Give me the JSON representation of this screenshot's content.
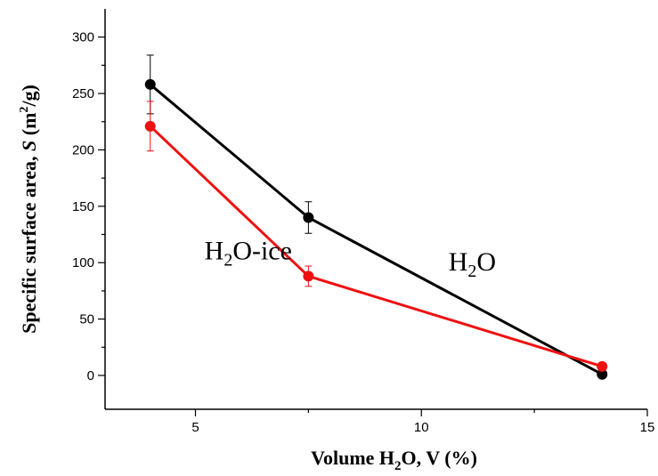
{
  "chart_data": {
    "type": "line",
    "title": "",
    "xlabel": {
      "pre": "Volume H",
      "sub": "2",
      "post": "O, V (%)"
    },
    "ylabel": {
      "pre": "Specific surface area, ",
      "italic": "S",
      "mid": " (m",
      "sup": "2",
      "post": "/g)"
    },
    "xlim": [
      3,
      15
    ],
    "ylim": [
      -30,
      325
    ],
    "xticks": [
      5,
      10,
      15
    ],
    "xticks_minor": [
      7.5,
      12.5
    ],
    "yticks": [
      0,
      50,
      100,
      150,
      200,
      250,
      300
    ],
    "yticks_minor": [
      25,
      75,
      125,
      175,
      225,
      275
    ],
    "grid": false,
    "series": [
      {
        "color": "#000000",
        "x": [
          4,
          7.5,
          14
        ],
        "y": [
          258,
          140,
          1
        ],
        "err": [
          26,
          14,
          0
        ]
      },
      {
        "color": "#ee1111",
        "x": [
          4,
          7.5,
          14
        ],
        "y": [
          221,
          88,
          8
        ],
        "err": [
          22,
          9,
          0
        ]
      }
    ],
    "annotations": [
      {
        "pre": "H",
        "sub": "2",
        "post": "O-ice",
        "x": 5.2,
        "y": 103
      },
      {
        "pre": "H",
        "sub": "2",
        "post": "O",
        "x": 10.6,
        "y": 93
      }
    ]
  }
}
